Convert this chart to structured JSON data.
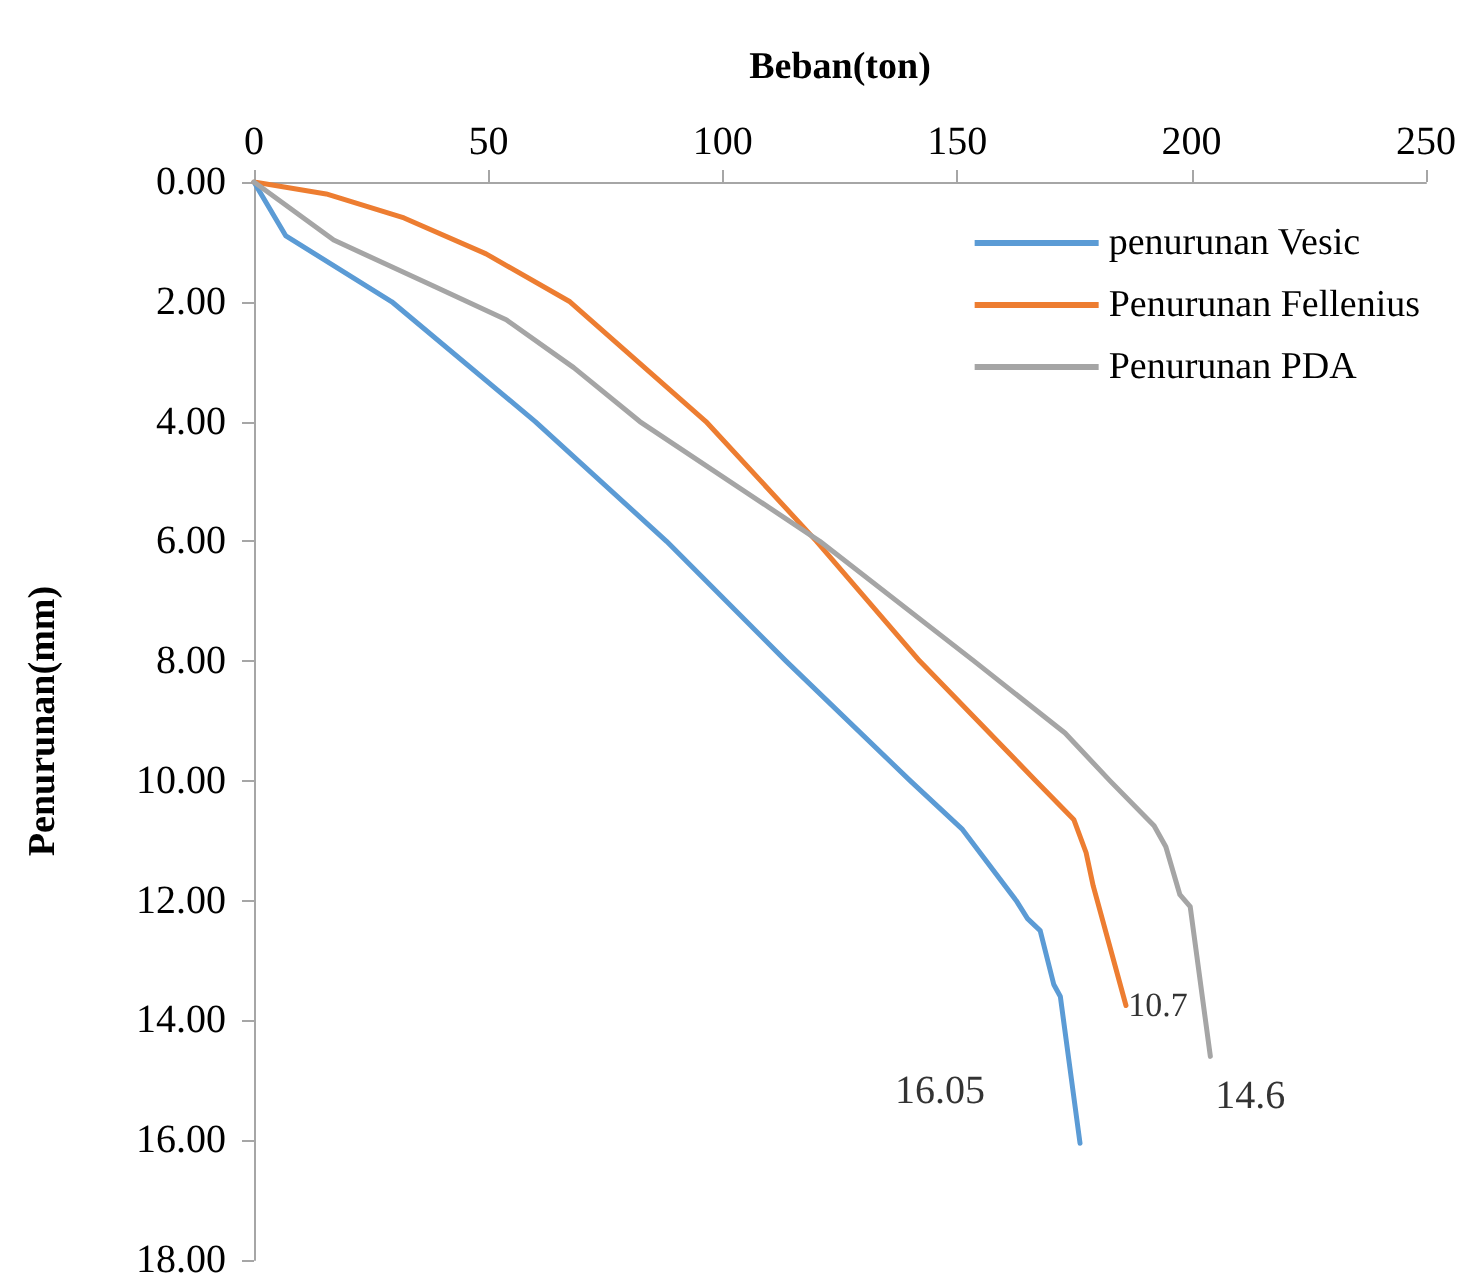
{
  "chart_data": {
    "type": "line",
    "xlabel": "Beban(ton)",
    "ylabel": "Penurunan(mm)",
    "xlim": [
      0,
      250
    ],
    "xticks": [
      0,
      50,
      100,
      150,
      200,
      250
    ],
    "ylim": [
      18,
      0
    ],
    "yticks": [
      {
        "value": 0,
        "label": "0.00"
      },
      {
        "value": 2,
        "label": "2.00"
      },
      {
        "value": 4,
        "label": "4.00"
      },
      {
        "value": 6,
        "label": "6.00"
      },
      {
        "value": 8,
        "label": "8.00"
      },
      {
        "value": 10,
        "label": "10.00"
      },
      {
        "value": 12,
        "label": "12.00"
      },
      {
        "value": 14,
        "label": "14.00"
      },
      {
        "value": 16,
        "label": "16.00"
      },
      {
        "value": 18,
        "label": "18.00"
      }
    ],
    "grid": false,
    "legend": "top right",
    "marker": "none",
    "line_style": "solid",
    "series": [
      {
        "name": "penurunan Vesic",
        "color": "#5b9bd5",
        "x": [
          0,
          6.8,
          29.4,
          60,
          88,
          113.5,
          140,
          151,
          162.6,
          165,
          167.7,
          170.6,
          172,
          176.2
        ],
        "values": [
          0,
          0.9,
          2.0,
          4.0,
          6.0,
          8.0,
          10.0,
          10.8,
          12.0,
          12.3,
          12.5,
          13.4,
          13.6,
          16.05
        ]
      },
      {
        "name": "Penurunan Fellenius",
        "color": "#ed7d31",
        "x": [
          0,
          15.4,
          32,
          49.5,
          67.4,
          96.4,
          120,
          142,
          166.8,
          174.9,
          177.5,
          179,
          186
        ],
        "values": [
          0,
          0.2,
          0.6,
          1.2,
          2.0,
          4.0,
          6.0,
          8.0,
          10.0,
          10.65,
          11.2,
          11.75,
          13.75
        ]
      },
      {
        "name": "Penurunan PDA",
        "color": "#a5a5a5",
        "x": [
          0,
          17,
          38.4,
          53.8,
          68.2,
          82.3,
          120.7,
          153.6,
          173,
          182.6,
          192,
          194.5,
          197.5,
          199.7,
          204
        ],
        "values": [
          0,
          0.97,
          1.74,
          2.3,
          3.1,
          4.0,
          6.0,
          8.0,
          9.2,
          10.0,
          10.75,
          11.1,
          11.9,
          12.1,
          14.6
        ]
      }
    ],
    "annotations": [
      {
        "text": "16.05",
        "x": 176.2,
        "y": 16.05
      },
      {
        "text": "10.7",
        "x": 186,
        "y": 13.75
      },
      {
        "text": "14.6",
        "x": 204,
        "y": 14.6
      }
    ]
  }
}
